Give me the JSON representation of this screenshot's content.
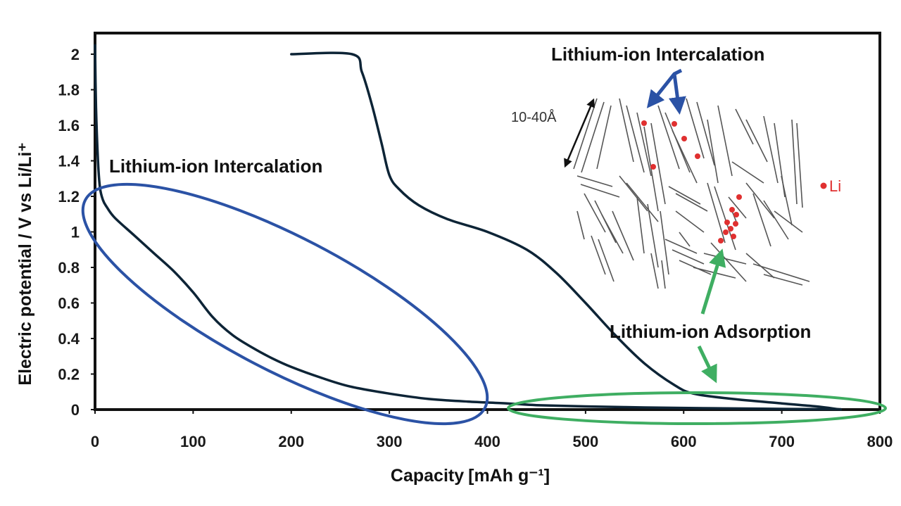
{
  "chart_data": {
    "type": "line",
    "xlabel": "Capacity",
    "xunit": "[mAh g⁻¹]",
    "ylabel": "Electric potential / V vs Li/Li⁺",
    "xlim": [
      0,
      800
    ],
    "ylim": [
      0,
      2
    ],
    "xticks": [
      "0",
      "100",
      "200",
      "300",
      "400",
      "500",
      "600",
      "700",
      "800"
    ],
    "yticks": [
      "0",
      "0.2",
      "0.4",
      "0.6",
      "0.8",
      "1",
      "1.2",
      "1.4",
      "1.6",
      "1.8",
      "2"
    ],
    "grid": false,
    "series": [
      {
        "color": "#0d2436",
        "x": [
          0,
          1,
          3,
          5,
          8,
          12,
          20,
          40,
          60,
          80,
          100,
          120,
          140,
          160,
          180,
          200,
          230,
          260,
          300,
          340,
          380,
          420,
          450,
          500,
          560,
          620,
          680,
          720,
          760
        ],
        "y": [
          2.05,
          1.7,
          1.4,
          1.25,
          1.18,
          1.14,
          1.08,
          0.98,
          0.88,
          0.78,
          0.66,
          0.52,
          0.42,
          0.35,
          0.29,
          0.24,
          0.18,
          0.13,
          0.09,
          0.06,
          0.045,
          0.035,
          0.025,
          0.018,
          0.012,
          0.008,
          0.005,
          0.003,
          0.002
        ]
      },
      {
        "color": "#0d2436",
        "x": [
          200,
          262,
          272,
          282,
          292,
          300,
          310,
          330,
          360,
          400,
          440,
          470,
          500,
          530,
          560,
          590,
          610,
          650,
          700,
          740,
          760
        ],
        "y": [
          2.0,
          2.0,
          1.9,
          1.72,
          1.5,
          1.32,
          1.24,
          1.15,
          1.07,
          1.0,
          0.9,
          0.77,
          0.6,
          0.42,
          0.26,
          0.14,
          0.09,
          0.06,
          0.035,
          0.015,
          0.0
        ]
      }
    ],
    "annotations": {
      "intercalation_left": "Lithium-ion Intercalation",
      "intercalation_top": "Lithium-ion Intercalation",
      "adsorption": "Lithium-ion Adsorption",
      "spacing": "10-40Å",
      "li_legend": "Li"
    },
    "colors": {
      "curve": "#0d2436",
      "intercalation_ellipse": "#2b52a5",
      "adsorption_ellipse": "#3fae62",
      "li_dot": "#e03030",
      "axes": "#111111"
    }
  }
}
